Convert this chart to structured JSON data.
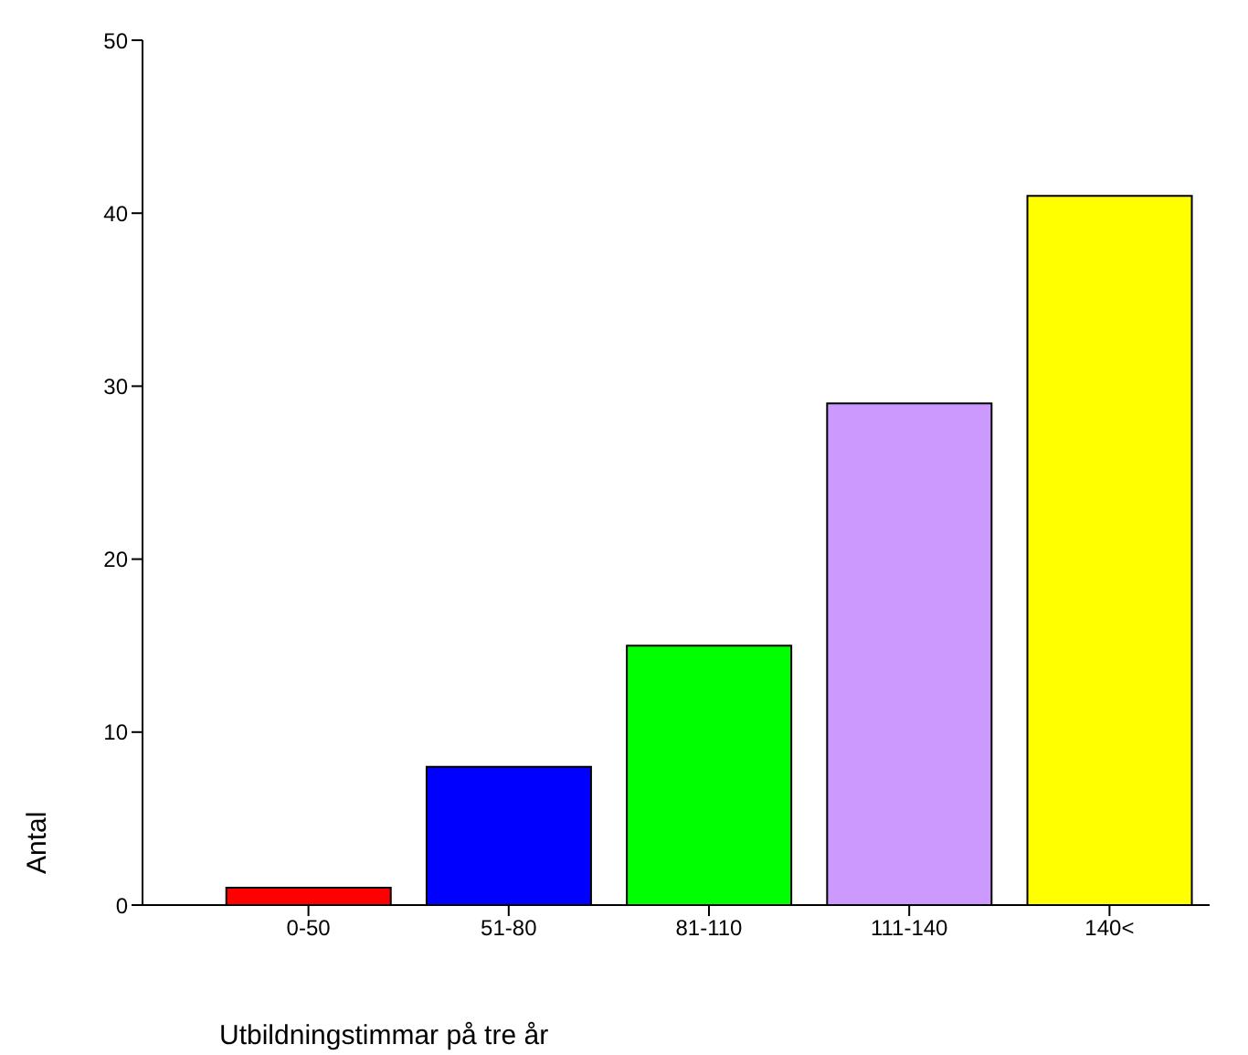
{
  "chart_data": {
    "type": "bar",
    "xlabel": "Utbildningstimmar på tre år",
    "ylabel": "Antal",
    "categories": [
      "0-50",
      "51-80",
      "81-110",
      "111-140",
      "140<"
    ],
    "values": [
      1,
      8,
      15,
      29,
      41
    ],
    "colors": [
      "#ff0000",
      "#0000ff",
      "#00ff00",
      "#cc99ff",
      "#ffff00"
    ],
    "ylim": [
      0,
      50
    ],
    "yticks": [
      0,
      10,
      20,
      30,
      40,
      50
    ],
    "grid": false
  }
}
